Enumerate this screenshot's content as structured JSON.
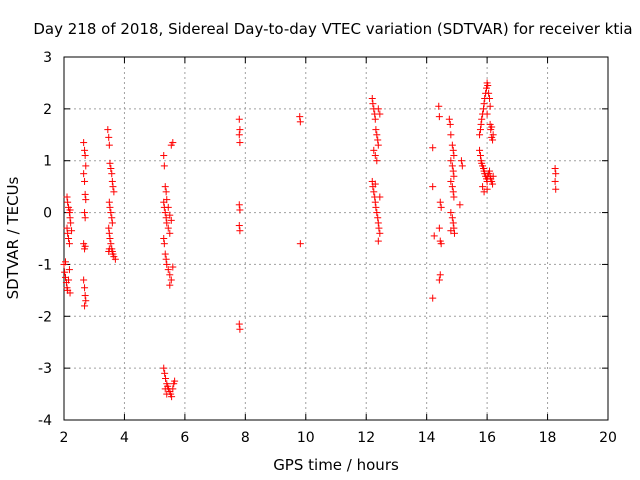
{
  "chart_data": {
    "type": "scatter",
    "title": "Day 218 of 2018, Sidereal Day-to-day VTEC variation (SDTVAR) for receiver ktia",
    "xlabel": "GPS time / hours",
    "ylabel": "SDTVAR / TECUs",
    "xlim": [
      2,
      20
    ],
    "ylim": [
      -4,
      3
    ],
    "xticks": [
      2,
      4,
      6,
      8,
      10,
      12,
      14,
      16,
      18,
      20
    ],
    "yticks": [
      -4,
      -3,
      -2,
      -1,
      0,
      1,
      2,
      3
    ],
    "grid": true,
    "marker": "+",
    "color": "#ff0000",
    "series": [
      {
        "name": "SDTVAR",
        "points": [
          [
            2.0,
            -1.0
          ],
          [
            2.02,
            -1.15
          ],
          [
            2.05,
            -1.25
          ],
          [
            2.08,
            -1.35
          ],
          [
            2.1,
            -1.45
          ],
          [
            2.12,
            -1.5
          ],
          [
            2.15,
            -1.3
          ],
          [
            2.18,
            -1.1
          ],
          [
            2.05,
            -0.95
          ],
          [
            2.2,
            -1.55
          ],
          [
            2.1,
            0.3
          ],
          [
            2.12,
            0.2
          ],
          [
            2.15,
            0.1
          ],
          [
            2.18,
            0.0
          ],
          [
            2.2,
            -0.1
          ],
          [
            2.1,
            -0.3
          ],
          [
            2.12,
            -0.4
          ],
          [
            2.15,
            -0.5
          ],
          [
            2.18,
            -0.6
          ],
          [
            2.2,
            0.05
          ],
          [
            2.22,
            -0.2
          ],
          [
            2.25,
            -0.35
          ],
          [
            2.65,
            1.35
          ],
          [
            2.68,
            1.2
          ],
          [
            2.7,
            1.1
          ],
          [
            2.72,
            0.9
          ],
          [
            2.65,
            0.75
          ],
          [
            2.68,
            0.6
          ],
          [
            2.7,
            0.35
          ],
          [
            2.72,
            0.25
          ],
          [
            2.68,
            0.0
          ],
          [
            2.7,
            -0.1
          ],
          [
            2.65,
            -0.6
          ],
          [
            2.68,
            -0.7
          ],
          [
            2.7,
            -0.65
          ],
          [
            2.65,
            -1.3
          ],
          [
            2.68,
            -1.45
          ],
          [
            2.7,
            -1.6
          ],
          [
            2.72,
            -1.7
          ],
          [
            2.68,
            -1.8
          ],
          [
            3.45,
            1.6
          ],
          [
            3.48,
            1.45
          ],
          [
            3.5,
            1.3
          ],
          [
            3.52,
            0.95
          ],
          [
            3.55,
            0.85
          ],
          [
            3.58,
            0.75
          ],
          [
            3.6,
            0.6
          ],
          [
            3.62,
            0.5
          ],
          [
            3.65,
            0.4
          ],
          [
            3.5,
            0.2
          ],
          [
            3.52,
            0.1
          ],
          [
            3.55,
            0.0
          ],
          [
            3.58,
            -0.1
          ],
          [
            3.6,
            -0.2
          ],
          [
            3.48,
            -0.3
          ],
          [
            3.5,
            -0.4
          ],
          [
            3.52,
            -0.5
          ],
          [
            3.55,
            -0.6
          ],
          [
            3.58,
            -0.7
          ],
          [
            3.6,
            -0.75
          ],
          [
            3.62,
            -0.8
          ],
          [
            3.65,
            -0.85
          ],
          [
            3.7,
            -0.9
          ],
          [
            3.48,
            -0.75
          ],
          [
            3.5,
            -0.7
          ],
          [
            5.3,
            1.1
          ],
          [
            5.32,
            0.9
          ],
          [
            5.35,
            0.5
          ],
          [
            5.38,
            0.4
          ],
          [
            5.4,
            0.25
          ],
          [
            5.3,
            0.2
          ],
          [
            5.32,
            0.1
          ],
          [
            5.35,
            0.0
          ],
          [
            5.38,
            -0.1
          ],
          [
            5.4,
            -0.2
          ],
          [
            5.45,
            -0.3
          ],
          [
            5.5,
            -0.4
          ],
          [
            5.3,
            -0.5
          ],
          [
            5.32,
            -0.6
          ],
          [
            5.35,
            -0.8
          ],
          [
            5.38,
            -0.9
          ],
          [
            5.4,
            -1.0
          ],
          [
            5.45,
            -1.1
          ],
          [
            5.5,
            -1.2
          ],
          [
            5.55,
            -1.3
          ],
          [
            5.5,
            -1.4
          ],
          [
            5.6,
            -1.05
          ],
          [
            5.55,
            1.3
          ],
          [
            5.6,
            1.35
          ],
          [
            5.45,
            0.1
          ],
          [
            5.5,
            -0.05
          ],
          [
            5.55,
            -0.15
          ],
          [
            5.3,
            -3.0
          ],
          [
            5.33,
            -3.1
          ],
          [
            5.36,
            -3.2
          ],
          [
            5.4,
            -3.3
          ],
          [
            5.43,
            -3.35
          ],
          [
            5.46,
            -3.4
          ],
          [
            5.5,
            -3.45
          ],
          [
            5.53,
            -3.5
          ],
          [
            5.56,
            -3.55
          ],
          [
            5.6,
            -3.4
          ],
          [
            5.63,
            -3.3
          ],
          [
            5.66,
            -3.25
          ],
          [
            5.4,
            -3.5
          ],
          [
            5.35,
            -3.4
          ],
          [
            7.8,
            1.8
          ],
          [
            7.82,
            1.6
          ],
          [
            7.8,
            1.5
          ],
          [
            7.82,
            1.35
          ],
          [
            7.8,
            0.15
          ],
          [
            7.82,
            0.05
          ],
          [
            7.8,
            -0.25
          ],
          [
            7.82,
            -0.35
          ],
          [
            7.8,
            -2.15
          ],
          [
            7.82,
            -2.25
          ],
          [
            9.8,
            1.85
          ],
          [
            9.82,
            1.75
          ],
          [
            9.82,
            -0.6
          ],
          [
            12.2,
            2.2
          ],
          [
            12.22,
            2.1
          ],
          [
            12.25,
            2.0
          ],
          [
            12.28,
            1.9
          ],
          [
            12.3,
            1.8
          ],
          [
            12.32,
            1.6
          ],
          [
            12.35,
            1.5
          ],
          [
            12.38,
            1.4
          ],
          [
            12.4,
            1.3
          ],
          [
            12.25,
            1.2
          ],
          [
            12.3,
            1.1
          ],
          [
            12.35,
            1.0
          ],
          [
            12.4,
            2.0
          ],
          [
            12.45,
            1.9
          ],
          [
            12.2,
            0.6
          ],
          [
            12.22,
            0.5
          ],
          [
            12.25,
            0.4
          ],
          [
            12.28,
            0.3
          ],
          [
            12.3,
            0.2
          ],
          [
            12.32,
            0.1
          ],
          [
            12.35,
            0.0
          ],
          [
            12.38,
            -0.1
          ],
          [
            12.4,
            -0.2
          ],
          [
            12.42,
            -0.3
          ],
          [
            12.45,
            -0.4
          ],
          [
            12.4,
            -0.55
          ],
          [
            12.3,
            0.55
          ],
          [
            12.45,
            0.3
          ],
          [
            14.2,
            1.25
          ],
          [
            14.2,
            0.5
          ],
          [
            14.25,
            -0.45
          ],
          [
            14.2,
            -1.65
          ],
          [
            14.4,
            2.05
          ],
          [
            14.42,
            1.85
          ],
          [
            14.45,
            0.2
          ],
          [
            14.48,
            0.1
          ],
          [
            14.42,
            -0.3
          ],
          [
            14.45,
            -0.55
          ],
          [
            14.48,
            -0.6
          ],
          [
            14.45,
            -1.2
          ],
          [
            14.42,
            -1.3
          ],
          [
            14.75,
            1.8
          ],
          [
            14.78,
            1.7
          ],
          [
            14.8,
            1.5
          ],
          [
            14.85,
            1.3
          ],
          [
            14.88,
            1.2
          ],
          [
            14.9,
            1.1
          ],
          [
            14.8,
            1.0
          ],
          [
            14.85,
            0.9
          ],
          [
            14.88,
            0.8
          ],
          [
            14.9,
            0.7
          ],
          [
            14.8,
            0.6
          ],
          [
            14.85,
            0.5
          ],
          [
            14.88,
            0.4
          ],
          [
            14.9,
            0.3
          ],
          [
            14.8,
            0.0
          ],
          [
            14.85,
            -0.1
          ],
          [
            14.88,
            -0.2
          ],
          [
            14.9,
            -0.3
          ],
          [
            14.92,
            -0.4
          ],
          [
            14.8,
            -0.35
          ],
          [
            15.15,
            1.0
          ],
          [
            15.18,
            0.9
          ],
          [
            15.1,
            0.15
          ],
          [
            15.75,
            1.5
          ],
          [
            15.78,
            1.6
          ],
          [
            15.8,
            1.7
          ],
          [
            15.82,
            1.8
          ],
          [
            15.85,
            1.9
          ],
          [
            15.88,
            2.0
          ],
          [
            15.9,
            2.1
          ],
          [
            15.92,
            2.2
          ],
          [
            15.95,
            2.3
          ],
          [
            15.98,
            2.4
          ],
          [
            16.0,
            2.5
          ],
          [
            16.02,
            2.45
          ],
          [
            16.05,
            2.3
          ],
          [
            16.08,
            2.2
          ],
          [
            16.1,
            2.05
          ],
          [
            16.0,
            1.9
          ],
          [
            15.75,
            1.2
          ],
          [
            15.78,
            1.1
          ],
          [
            15.8,
            1.0
          ],
          [
            15.82,
            0.95
          ],
          [
            15.85,
            0.9
          ],
          [
            15.88,
            0.85
          ],
          [
            15.9,
            0.8
          ],
          [
            15.92,
            0.75
          ],
          [
            15.95,
            0.7
          ],
          [
            15.98,
            0.65
          ],
          [
            16.0,
            0.6
          ],
          [
            16.02,
            0.7
          ],
          [
            16.05,
            0.75
          ],
          [
            16.08,
            0.8
          ],
          [
            16.1,
            0.7
          ],
          [
            16.12,
            0.65
          ],
          [
            16.15,
            0.6
          ],
          [
            16.18,
            0.55
          ],
          [
            16.2,
            0.7
          ],
          [
            15.85,
            0.5
          ],
          [
            15.9,
            0.4
          ],
          [
            16.0,
            0.45
          ],
          [
            16.1,
            1.7
          ],
          [
            16.12,
            1.6
          ],
          [
            16.15,
            1.45
          ],
          [
            16.18,
            1.4
          ],
          [
            16.2,
            1.5
          ],
          [
            16.15,
            1.65
          ],
          [
            18.25,
            0.85
          ],
          [
            18.27,
            0.75
          ],
          [
            18.25,
            0.6
          ],
          [
            18.27,
            0.45
          ]
        ]
      }
    ]
  }
}
